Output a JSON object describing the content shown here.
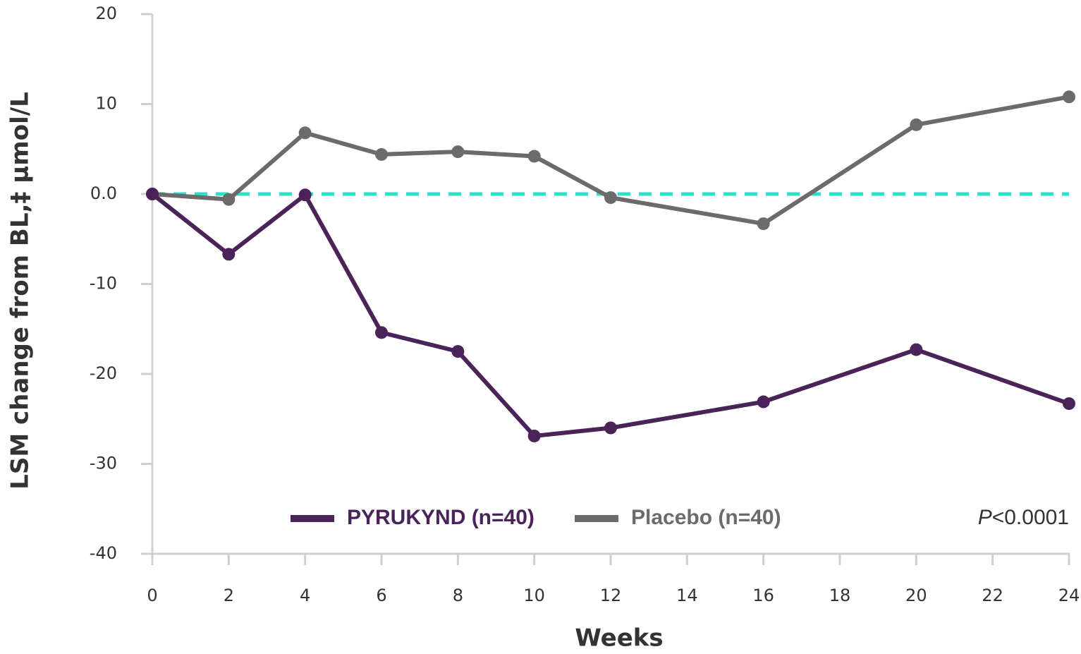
{
  "chart_data": {
    "type": "line",
    "y_label": "LSM change from BL,‡ µmol/L",
    "x_label": "Weeks",
    "annotation": "P<0.0001",
    "x": [
      0,
      2,
      4,
      6,
      8,
      10,
      12,
      16,
      20,
      24
    ],
    "series": [
      {
        "name": "PYRUKYND (n=40)",
        "color": "#4a2358",
        "values": [
          0,
          -6.7,
          -0.1,
          -15.4,
          -17.5,
          -26.9,
          -26.0,
          -23.1,
          -17.3,
          -23.3
        ]
      },
      {
        "name": "Placebo (n=40)",
        "color": "#6b6b6b",
        "values": [
          0,
          -0.6,
          6.8,
          4.4,
          4.7,
          4.2,
          -0.4,
          -3.3,
          7.7,
          10.8
        ]
      }
    ],
    "reference_line": {
      "value": 0,
      "color": "#2de0c8",
      "style": "dashed"
    },
    "xlim": [
      0,
      24
    ],
    "xticks": [
      0,
      2,
      4,
      6,
      8,
      10,
      12,
      14,
      16,
      18,
      20,
      22,
      24
    ],
    "ylim": [
      -40,
      20
    ],
    "yticks": [
      20,
      10,
      {
        "value": 0,
        "label": "0.0"
      },
      -10,
      -20,
      -30,
      -40
    ],
    "grid": false,
    "legend": "lower center"
  }
}
